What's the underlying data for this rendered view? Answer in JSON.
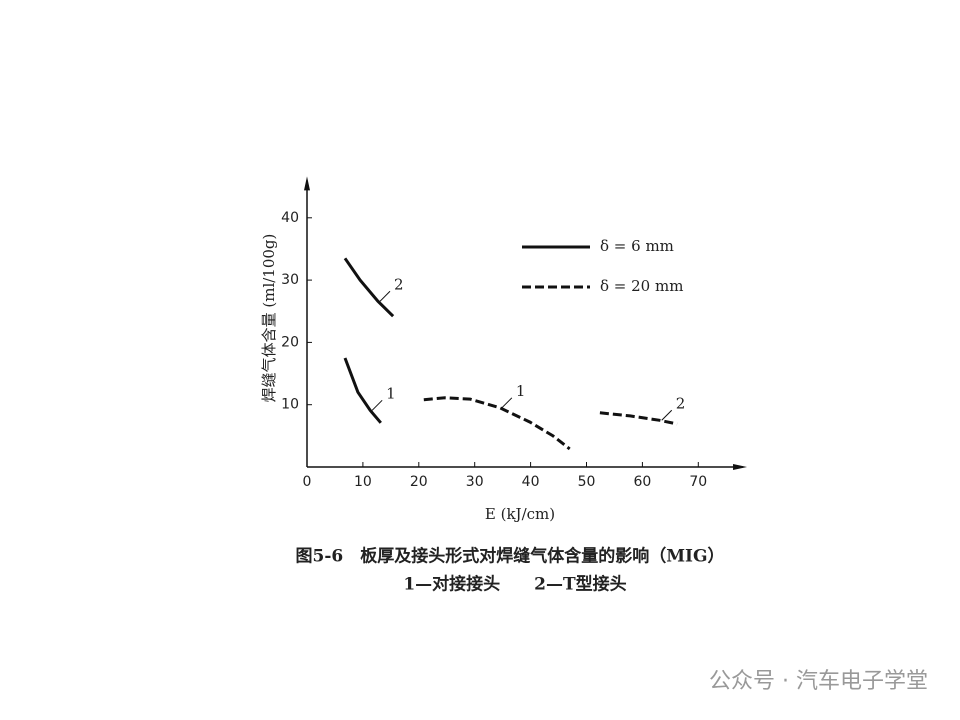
{
  "chart_data": {
    "type": "line",
    "caption": "图5-6　板厚及接头形式对焊缝气体含量的影响（MIG）",
    "caption_note": "1—对接接头　　2—T型接头",
    "x_label": "E (kJ/cm)",
    "y_label": "焊缝气体含量 (ml/100g)",
    "xlim": [
      0,
      78
    ],
    "ylim": [
      0,
      46
    ],
    "xticks": [
      0,
      10,
      20,
      30,
      40,
      50,
      60,
      70
    ],
    "yticks": [
      10,
      20,
      30,
      40
    ],
    "color": "#111111",
    "series": [
      {
        "name": "δ = 6 mm",
        "line_style": "solid",
        "curves": [
          {
            "label": "2",
            "x": [
              6.8,
              9.5,
              12.7,
              15.4
            ],
            "values": [
              33.5,
              30,
              26.6,
              24.2
            ]
          },
          {
            "label": "1",
            "x": [
              6.8,
              9.1,
              11.3,
              13.2
            ],
            "values": [
              17.5,
              12,
              9.1,
              7.1
            ]
          }
        ]
      },
      {
        "name": "δ = 20 mm",
        "line_style": "dashed",
        "curves": [
          {
            "label": "1",
            "x": [
              20.9,
              24.7,
              29.2,
              34.5,
              39.9,
              44,
              47
            ],
            "values": [
              10.8,
              11.1,
              10.9,
              9.5,
              7.2,
              5,
              2.9
            ]
          },
          {
            "label": "2",
            "x": [
              52.4,
              57.8,
              63.1,
              66.2
            ],
            "values": [
              8.7,
              8.2,
              7.5,
              6.9
            ]
          }
        ]
      }
    ],
    "watermark": "公众号 · 汽车电子学堂"
  }
}
